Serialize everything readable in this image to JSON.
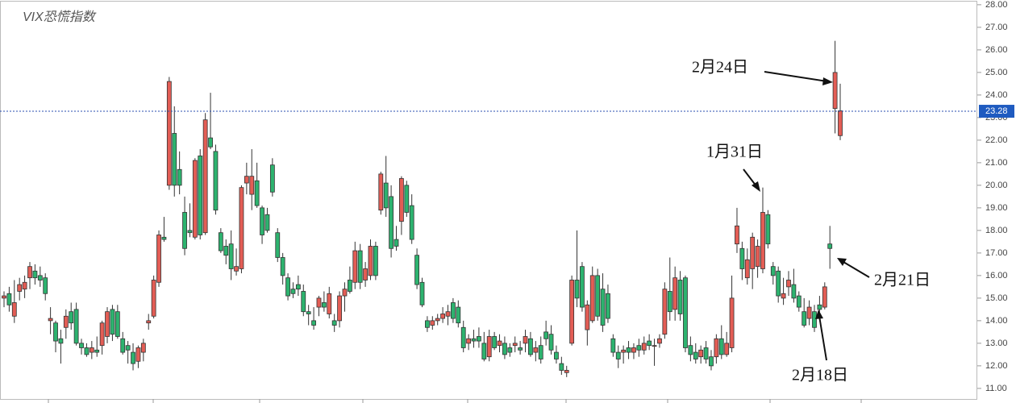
{
  "chart_data": {
    "type": "candlestick",
    "title": "VIX恐慌指数",
    "ylim": [
      10.46,
      28.21
    ],
    "yticks": [
      {
        "value": 11,
        "label": "11.00"
      },
      {
        "value": 12,
        "label": "12.00"
      },
      {
        "value": 13,
        "label": "13.00"
      },
      {
        "value": 14,
        "label": "14.00"
      },
      {
        "value": 15,
        "label": "15.00"
      },
      {
        "value": 16,
        "label": "16.00"
      },
      {
        "value": 17,
        "label": "17.00"
      },
      {
        "value": 18,
        "label": "18.00"
      },
      {
        "value": 19,
        "label": "19.00"
      },
      {
        "value": 20,
        "label": "20.00"
      },
      {
        "value": 21,
        "label": "21.00"
      },
      {
        "value": 22,
        "label": "22.00"
      },
      {
        "value": 23,
        "label": "23.00"
      },
      {
        "value": 24,
        "label": "24.00"
      },
      {
        "value": 25,
        "label": "25.00"
      },
      {
        "value": 26,
        "label": "26.00"
      },
      {
        "value": 27,
        "label": "27.00"
      },
      {
        "value": 28,
        "label": "28.00"
      }
    ],
    "last_price": 23.28,
    "up_color": "#e35d55",
    "down_color": "#2db36f",
    "annotations": [
      "2月24日",
      "1月31日",
      "2月21日",
      "2月18日"
    ],
    "ohlc": [
      [
        15.0,
        15.3,
        14.6,
        15.1
      ],
      [
        15.2,
        15.5,
        14.4,
        14.7
      ],
      [
        14.2,
        15.8,
        13.9,
        14.8
      ],
      [
        15.3,
        15.9,
        14.9,
        15.6
      ],
      [
        15.4,
        16.0,
        15.0,
        15.7
      ],
      [
        15.9,
        16.6,
        15.4,
        16.4
      ],
      [
        16.2,
        16.5,
        15.6,
        15.9
      ],
      [
        16.0,
        16.4,
        15.5,
        15.8
      ],
      [
        15.9,
        16.1,
        14.9,
        15.2
      ],
      [
        14.0,
        14.6,
        13.4,
        14.1
      ],
      [
        13.9,
        14.0,
        12.6,
        13.1
      ],
      [
        13.2,
        13.6,
        12.1,
        13.0
      ],
      [
        13.7,
        14.5,
        13.2,
        14.2
      ],
      [
        14.4,
        14.8,
        13.6,
        13.9
      ],
      [
        14.5,
        14.8,
        12.9,
        13.0
      ],
      [
        13.0,
        13.2,
        12.5,
        12.8
      ],
      [
        12.8,
        13.0,
        12.4,
        12.5
      ],
      [
        12.6,
        13.1,
        12.3,
        12.8
      ],
      [
        12.7,
        13.3,
        12.4,
        12.6
      ],
      [
        12.9,
        14.0,
        12.5,
        13.9
      ],
      [
        13.3,
        14.6,
        13.0,
        14.4
      ],
      [
        14.5,
        14.7,
        13.1,
        13.4
      ],
      [
        14.4,
        14.7,
        13.2,
        13.3
      ],
      [
        13.2,
        13.5,
        12.5,
        12.6
      ],
      [
        12.9,
        13.1,
        12.1,
        12.7
      ],
      [
        12.6,
        13.0,
        11.8,
        12.1
      ],
      [
        12.2,
        12.9,
        11.9,
        12.8
      ],
      [
        12.6,
        13.2,
        12.2,
        13.0
      ],
      [
        13.9,
        14.3,
        13.6,
        14.0
      ],
      [
        14.2,
        16.0,
        14.1,
        15.8
      ],
      [
        15.7,
        18.0,
        15.5,
        17.8
      ],
      [
        17.7,
        18.6,
        17.5,
        17.6
      ],
      [
        20.0,
        24.8,
        19.8,
        24.6
      ],
      [
        22.3,
        23.5,
        19.5,
        20.0
      ],
      [
        20.7,
        21.5,
        19.6,
        20.0
      ],
      [
        18.8,
        19.5,
        16.9,
        17.2
      ],
      [
        18.0,
        19.2,
        17.7,
        17.9
      ],
      [
        17.7,
        21.2,
        17.6,
        21.1
      ],
      [
        21.3,
        21.6,
        17.6,
        17.8
      ],
      [
        17.9,
        23.2,
        17.8,
        22.9
      ],
      [
        22.1,
        24.1,
        21.6,
        21.7
      ],
      [
        21.5,
        21.8,
        18.7,
        18.9
      ],
      [
        17.9,
        18.1,
        17.0,
        17.1
      ],
      [
        17.3,
        17.6,
        16.5,
        16.9
      ],
      [
        17.4,
        18.0,
        15.8,
        16.3
      ],
      [
        16.2,
        17.2,
        16.0,
        16.4
      ],
      [
        16.3,
        20.0,
        16.1,
        19.9
      ],
      [
        20.1,
        21.0,
        19.6,
        20.4
      ],
      [
        19.6,
        21.6,
        18.9,
        20.4
      ],
      [
        20.2,
        21.0,
        19.0,
        19.1
      ],
      [
        19.0,
        19.1,
        17.4,
        17.8
      ],
      [
        18.7,
        19.0,
        17.9,
        18.0
      ],
      [
        20.9,
        21.2,
        19.5,
        19.7
      ],
      [
        17.9,
        18.1,
        16.6,
        16.8
      ],
      [
        16.8,
        17.0,
        15.6,
        16.0
      ],
      [
        15.9,
        16.1,
        14.9,
        15.1
      ],
      [
        15.4,
        15.7,
        15.0,
        15.2
      ],
      [
        15.6,
        16.0,
        15.1,
        15.4
      ],
      [
        15.3,
        15.6,
        14.2,
        14.4
      ],
      [
        14.4,
        14.7,
        13.8,
        14.3
      ],
      [
        14.0,
        14.6,
        13.6,
        13.8
      ],
      [
        14.6,
        15.1,
        14.2,
        15.0
      ],
      [
        14.8,
        15.3,
        14.4,
        14.6
      ],
      [
        14.3,
        15.5,
        14.1,
        15.2
      ],
      [
        14.0,
        14.3,
        13.5,
        13.8
      ],
      [
        14.0,
        15.3,
        13.7,
        15.1
      ],
      [
        15.1,
        15.7,
        14.4,
        15.4
      ],
      [
        15.8,
        16.4,
        15.2,
        15.3
      ],
      [
        15.7,
        17.5,
        15.4,
        17.1
      ],
      [
        17.1,
        17.4,
        15.4,
        15.7
      ],
      [
        15.8,
        16.6,
        15.5,
        16.3
      ],
      [
        16.0,
        17.6,
        15.8,
        17.3
      ],
      [
        17.3,
        17.5,
        15.8,
        16.0
      ],
      [
        18.9,
        20.6,
        18.7,
        20.5
      ],
      [
        20.1,
        21.3,
        18.6,
        19.0
      ],
      [
        19.5,
        20.0,
        16.8,
        17.2
      ],
      [
        17.6,
        18.2,
        17.1,
        17.3
      ],
      [
        18.4,
        20.4,
        17.8,
        20.3
      ],
      [
        20.0,
        20.2,
        18.6,
        18.8
      ],
      [
        19.1,
        19.6,
        17.4,
        17.6
      ],
      [
        16.9,
        17.2,
        15.4,
        15.6
      ],
      [
        15.7,
        15.9,
        14.6,
        14.7
      ],
      [
        14.0,
        14.2,
        13.5,
        13.7
      ],
      [
        13.8,
        14.2,
        13.6,
        14.0
      ],
      [
        14.0,
        14.3,
        13.8,
        14.1
      ],
      [
        14.1,
        14.6,
        13.9,
        14.3
      ],
      [
        14.2,
        14.7,
        13.8,
        14.4
      ],
      [
        14.8,
        15.0,
        13.9,
        14.1
      ],
      [
        14.6,
        14.9,
        13.7,
        13.9
      ],
      [
        13.7,
        14.0,
        12.6,
        12.8
      ],
      [
        13.0,
        13.4,
        12.7,
        13.2
      ],
      [
        13.2,
        13.6,
        12.8,
        13.1
      ],
      [
        13.3,
        13.7,
        12.8,
        13.1
      ],
      [
        13.0,
        13.5,
        12.2,
        12.3
      ],
      [
        12.4,
        13.6,
        12.2,
        13.3
      ],
      [
        13.3,
        13.5,
        12.7,
        12.8
      ],
      [
        12.9,
        13.4,
        12.6,
        13.1
      ],
      [
        13.0,
        13.3,
        12.3,
        12.5
      ],
      [
        12.8,
        13.0,
        12.4,
        12.6
      ],
      [
        12.9,
        13.3,
        12.6,
        13.0
      ],
      [
        12.8,
        13.1,
        12.5,
        12.7
      ],
      [
        13.0,
        13.6,
        12.6,
        13.3
      ],
      [
        13.2,
        13.5,
        12.4,
        12.5
      ],
      [
        12.6,
        13.1,
        12.2,
        12.8
      ],
      [
        12.9,
        13.3,
        12.1,
        12.3
      ],
      [
        13.5,
        14.0,
        12.9,
        13.2
      ],
      [
        13.4,
        13.8,
        12.5,
        12.7
      ],
      [
        12.6,
        12.9,
        12.1,
        12.3
      ],
      [
        12.1,
        12.4,
        11.6,
        11.8
      ],
      [
        11.7,
        12.0,
        11.5,
        11.8
      ],
      [
        13.0,
        16.0,
        12.9,
        15.8
      ],
      [
        15.8,
        18.0,
        14.6,
        15.0
      ],
      [
        16.4,
        16.6,
        14.4,
        14.6
      ],
      [
        13.6,
        14.9,
        12.9,
        14.7
      ],
      [
        14.0,
        16.4,
        13.9,
        16.0
      ],
      [
        16.0,
        16.3,
        14.0,
        14.2
      ],
      [
        15.4,
        16.1,
        13.5,
        13.8
      ],
      [
        15.2,
        15.6,
        13.9,
        14.1
      ],
      [
        13.2,
        13.4,
        12.4,
        12.6
      ],
      [
        12.6,
        12.9,
        11.9,
        12.3
      ],
      [
        12.6,
        12.9,
        12.1,
        12.7
      ],
      [
        12.8,
        13.1,
        12.3,
        12.6
      ],
      [
        12.6,
        13.0,
        12.3,
        12.8
      ],
      [
        12.9,
        13.2,
        12.4,
        12.7
      ],
      [
        12.7,
        13.3,
        12.5,
        13.0
      ],
      [
        13.1,
        13.4,
        12.7,
        12.9
      ],
      [
        12.9,
        13.2,
        12.0,
        12.9
      ],
      [
        13.0,
        13.4,
        12.8,
        13.2
      ],
      [
        13.4,
        15.7,
        13.2,
        15.4
      ],
      [
        15.3,
        16.8,
        14.0,
        14.4
      ],
      [
        14.5,
        16.4,
        14.0,
        15.9
      ],
      [
        15.8,
        16.2,
        14.0,
        14.3
      ],
      [
        15.9,
        16.0,
        12.6,
        12.8
      ],
      [
        12.9,
        13.3,
        12.2,
        12.5
      ],
      [
        12.6,
        13.0,
        12.1,
        12.3
      ],
      [
        12.4,
        12.9,
        12.1,
        12.7
      ],
      [
        12.8,
        13.1,
        12.1,
        12.3
      ],
      [
        12.4,
        12.7,
        11.8,
        12.0
      ],
      [
        12.4,
        13.4,
        12.1,
        13.2
      ],
      [
        13.2,
        13.8,
        12.3,
        12.5
      ],
      [
        12.5,
        13.5,
        12.4,
        13.0
      ],
      [
        12.8,
        16.0,
        12.6,
        15.0
      ],
      [
        17.4,
        19.0,
        17.0,
        18.2
      ],
      [
        17.2,
        17.5,
        15.8,
        16.3
      ],
      [
        15.9,
        17.2,
        15.6,
        16.7
      ],
      [
        16.3,
        17.9,
        15.4,
        17.7
      ],
      [
        16.4,
        17.6,
        15.9,
        17.3
      ],
      [
        16.3,
        19.9,
        16.1,
        18.8
      ],
      [
        18.7,
        18.9,
        17.2,
        17.4
      ],
      [
        16.4,
        16.6,
        15.6,
        16.0
      ],
      [
        16.2,
        16.4,
        14.8,
        15.1
      ],
      [
        15.0,
        15.9,
        14.7,
        15.2
      ],
      [
        15.5,
        16.2,
        15.1,
        15.8
      ],
      [
        15.6,
        16.3,
        14.8,
        15.0
      ],
      [
        15.1,
        15.3,
        14.4,
        14.6
      ],
      [
        14.4,
        15.0,
        13.7,
        13.8
      ],
      [
        14.1,
        14.9,
        13.8,
        14.6
      ],
      [
        14.4,
        14.7,
        13.5,
        13.7
      ],
      [
        14.7,
        15.1,
        14.3,
        14.5
      ],
      [
        14.6,
        15.7,
        14.5,
        15.5
      ],
      [
        17.4,
        18.2,
        16.3,
        17.2
      ],
      [
        23.4,
        26.4,
        22.3,
        25.0
      ],
      [
        22.2,
        24.5,
        22.0,
        23.3
      ]
    ]
  }
}
